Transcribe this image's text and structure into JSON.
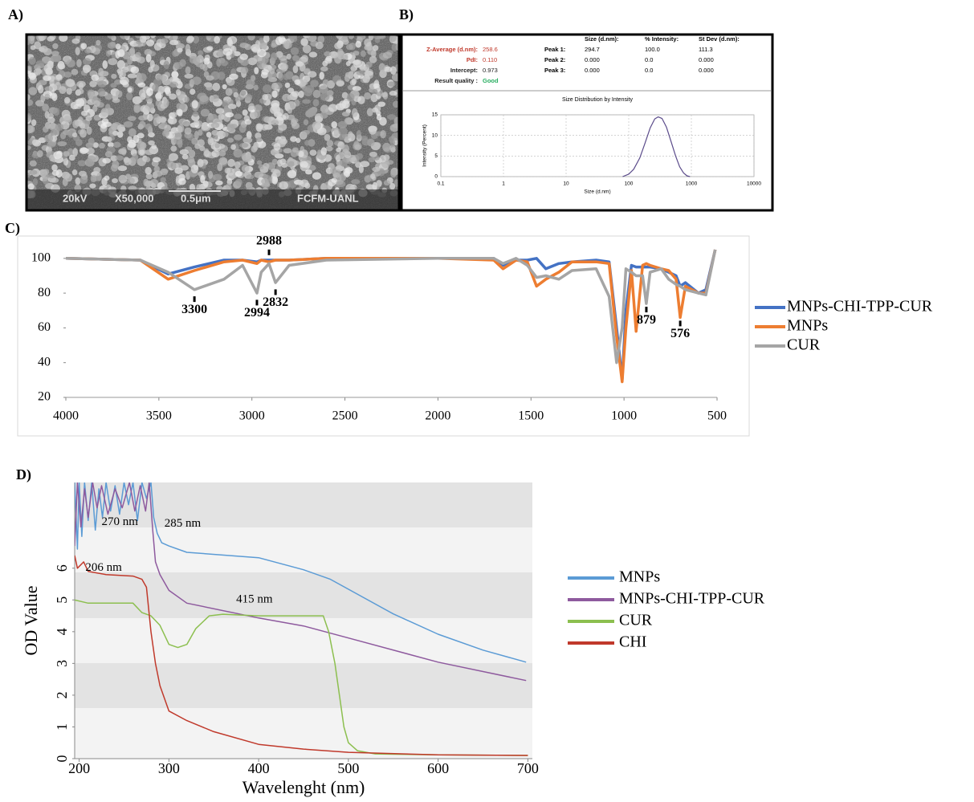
{
  "panels": [
    "A)",
    "B)",
    "C)",
    "D)"
  ],
  "sem_labels": [
    "20kV",
    "X50,000",
    "0.5μm",
    "FCFM-UANL"
  ],
  "dls_summary": {
    "rows": [
      [
        "Z-Average (d.nm):",
        "258.6"
      ],
      [
        "PdI:",
        "0.110"
      ],
      [
        "Intercept:",
        "0.973"
      ],
      [
        "Result quality :",
        "Good"
      ]
    ],
    "peak_header": [
      "Size (d.nm):",
      "% Intensity:",
      "St Dev (d.nm):"
    ],
    "peaks": [
      [
        "Peak 1:",
        "294.7",
        "100.0",
        "111.3"
      ],
      [
        "Peak 2:",
        "0.000",
        "0.0",
        "0.000"
      ],
      [
        "Peak 3:",
        "0.000",
        "0.0",
        "0.000"
      ]
    ]
  },
  "chart_data": [
    {
      "type": "line",
      "title": "Size Distribution by Intensity",
      "x_label": "Size (d.nm)",
      "y_label": "Intensity (Percent)",
      "xscale": "log",
      "xlim": [
        0.1,
        10000
      ],
      "xticks": [
        0.1,
        1,
        10,
        100,
        1000,
        10000
      ],
      "ylim": [
        0,
        15
      ],
      "yticks": [
        0,
        5,
        10,
        15
      ],
      "grid": true,
      "series": [
        {
          "name": null,
          "color": "#5a4a8a",
          "x": [
            80,
            100,
            120,
            150,
            180,
            220,
            260,
            295,
            340,
            400,
            480,
            560,
            650,
            750,
            850,
            950
          ],
          "values": [
            0,
            0.6,
            1.8,
            4.5,
            7.9,
            11.8,
            14.0,
            14.5,
            14.1,
            12.0,
            8.3,
            5.0,
            2.4,
            0.9,
            0.2,
            0
          ]
        }
      ]
    },
    {
      "type": "line",
      "xlim": [
        4000,
        500
      ],
      "xticks": [
        4000,
        3500,
        3000,
        2500,
        2000,
        1500,
        1000,
        500
      ],
      "ylim": [
        20,
        105
      ],
      "yticks": [
        20,
        40,
        60,
        80,
        100
      ],
      "legend": "right",
      "x": [
        4000,
        3600,
        3450,
        3309,
        3150,
        3050,
        2973,
        2950,
        2908,
        2873,
        2800,
        2600,
        2000,
        1700,
        1650,
        1580,
        1520,
        1470,
        1420,
        1350,
        1280,
        1150,
        1080,
        1040,
        1010,
        990,
        960,
        935,
        900,
        880,
        860,
        800,
        760,
        720,
        698,
        670,
        600,
        560,
        510
      ],
      "series": [
        {
          "name": "MNPs-CHI-TPP-CUR",
          "color": "#4472c4",
          "values": [
            100,
            99,
            91,
            95,
            99,
            99,
            98,
            99,
            99,
            99,
            99,
            100,
            100,
            100,
            96,
            99,
            99,
            100,
            94,
            97,
            98,
            99,
            98,
            60,
            30,
            70,
            96,
            95,
            95,
            95,
            95,
            94,
            92,
            90,
            84,
            86,
            80,
            82,
            105
          ]
        },
        {
          "name": "MNPs",
          "color": "#ed7d31",
          "values": [
            100,
            99,
            88,
            93,
            98,
            99,
            97,
            99,
            98,
            99,
            99,
            100,
            100,
            99,
            94,
            99,
            98,
            84,
            88,
            92,
            98,
            98,
            97,
            55,
            29,
            60,
            93,
            58,
            96,
            97,
            96,
            94,
            93,
            88,
            66,
            84,
            80,
            80,
            105
          ]
        },
        {
          "name": "CUR",
          "color": "#a5a5a5",
          "values": [
            100,
            99,
            92,
            82,
            88,
            96,
            80,
            92,
            97,
            86,
            96,
            99,
            100,
            100,
            97,
            100,
            96,
            89,
            90,
            88,
            93,
            94,
            78,
            40,
            60,
            94,
            92,
            90,
            90,
            74,
            92,
            94,
            88,
            85,
            84,
            82,
            80,
            79,
            105
          ]
        }
      ],
      "annotations": [
        {
          "label": "3300",
          "x": 3309,
          "y": 80,
          "position": "below"
        },
        {
          "label": "2988",
          "x": 2908,
          "y": 100,
          "position": "above"
        },
        {
          "label": "2994",
          "x": 2973,
          "y": 78,
          "position": "below"
        },
        {
          "label": "2832",
          "x": 2873,
          "y": 84,
          "position": "below"
        },
        {
          "label": "879",
          "x": 880,
          "y": 74,
          "position": "below"
        },
        {
          "label": "576",
          "x": 698,
          "y": 66,
          "position": "below"
        }
      ]
    },
    {
      "type": "line",
      "x_label": "Wavelenght (nm)",
      "y_label": "OD Value",
      "xlim": [
        195,
        705
      ],
      "xticks": [
        200,
        300,
        400,
        500,
        600,
        700
      ],
      "ylim": [
        0,
        8.7
      ],
      "yticks": [
        0,
        1,
        2,
        3,
        4,
        5,
        6
      ],
      "legend": "right",
      "series": [
        {
          "name": "MNPs",
          "color": "#5b9bd5",
          "x": [
            195,
            198,
            200,
            203,
            206,
            210,
            214,
            218,
            222,
            226,
            230,
            235,
            240,
            245,
            250,
            255,
            260,
            265,
            270,
            275,
            280,
            283,
            287,
            292,
            300,
            320,
            400,
            450,
            480,
            550,
            600,
            650,
            698
          ],
          "values": [
            8.7,
            6.6,
            8.7,
            7.0,
            8.7,
            7.5,
            8.7,
            7.2,
            8.5,
            7.6,
            8.7,
            7.8,
            8.6,
            7.7,
            8.7,
            8.0,
            8.7,
            7.5,
            8.7,
            8.2,
            8.7,
            7.6,
            7.1,
            6.8,
            6.7,
            6.5,
            6.33,
            5.95,
            5.65,
            4.56,
            3.92,
            3.42,
            3.04
          ]
        },
        {
          "name": "MNPs-CHI-TPP-CUR",
          "color": "#8e5a9e",
          "x": [
            195,
            198,
            202,
            206,
            210,
            215,
            220,
            225,
            232,
            240,
            248,
            256,
            262,
            268,
            274,
            278,
            282,
            285,
            290,
            300,
            320,
            400,
            450,
            500,
            600,
            698
          ],
          "values": [
            6.7,
            8.7,
            7.3,
            8.5,
            7.6,
            8.7,
            7.9,
            8.6,
            7.7,
            8.5,
            7.9,
            8.7,
            7.8,
            8.6,
            7.8,
            8.7,
            7.2,
            6.2,
            5.8,
            5.3,
            4.9,
            4.43,
            4.18,
            3.8,
            3.04,
            2.46
          ]
        },
        {
          "name": "CUR",
          "color": "#8cbf4f",
          "x": [
            195,
            210,
            260,
            270,
            280,
            290,
            300,
            310,
            320,
            330,
            345,
            360,
            400,
            450,
            472,
            478,
            485,
            490,
            495,
            500,
            510,
            530,
            600,
            700
          ],
          "values": [
            5.0,
            4.9,
            4.9,
            4.6,
            4.5,
            4.2,
            3.6,
            3.5,
            3.6,
            4.1,
            4.5,
            4.55,
            4.5,
            4.5,
            4.5,
            4.0,
            3.0,
            2.0,
            1.0,
            0.5,
            0.25,
            0.15,
            0.12,
            0.1
          ]
        },
        {
          "name": "CHI",
          "color": "#c0392b",
          "x": [
            195,
            198,
            205,
            210,
            230,
            260,
            270,
            275,
            280,
            285,
            290,
            300,
            320,
            350,
            400,
            450,
            500,
            600,
            700
          ],
          "values": [
            6.4,
            6.0,
            6.2,
            5.9,
            5.8,
            5.75,
            5.65,
            5.4,
            4.0,
            3.0,
            2.3,
            1.5,
            1.2,
            0.85,
            0.45,
            0.3,
            0.2,
            0.12,
            0.1
          ]
        }
      ],
      "annotations": [
        {
          "label": "285 nm",
          "x": 295,
          "y": 7.4
        },
        {
          "label": "270 nm",
          "x": 225,
          "y": 7.45
        },
        {
          "label": "206 nm",
          "x": 207,
          "y": 6.0
        },
        {
          "label": "415 nm",
          "x": 375,
          "y": 5.0
        }
      ]
    }
  ]
}
